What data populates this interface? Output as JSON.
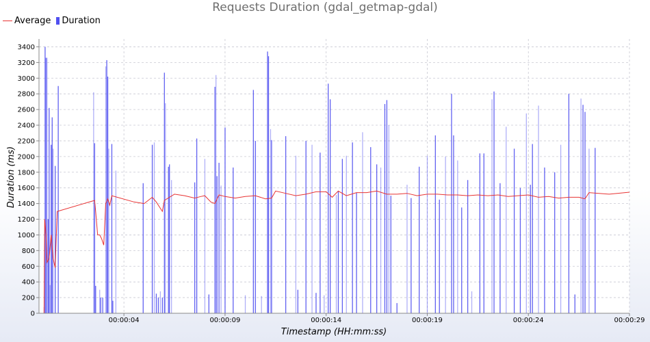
{
  "chart_data": {
    "type": "bar",
    "title": "Requests Duration (gdal_getmap-gdal)",
    "xlabel": "Timestamp (HH:mm:ss)",
    "ylabel": "Duration (ms)",
    "ylim": [
      0,
      3500
    ],
    "yticks": [
      0,
      200,
      400,
      600,
      800,
      1000,
      1200,
      1400,
      1600,
      1800,
      2000,
      2200,
      2400,
      2600,
      2800,
      3000,
      3200,
      3400
    ],
    "xlim_seconds": [
      -0.2,
      29
    ],
    "xticks": [
      {
        "label": "00:00:04",
        "t": 4
      },
      {
        "label": "00:00:09",
        "t": 9
      },
      {
        "label": "00:00:14",
        "t": 14
      },
      {
        "label": "00:00:19",
        "t": 19
      },
      {
        "label": "00:00:24",
        "t": 24
      },
      {
        "label": "00:00:29",
        "t": 29
      }
    ],
    "grid": true,
    "legend_position": "top-left",
    "colors": {
      "average": "#e83232",
      "duration": "#5050f0",
      "grid": "#c8c8d2"
    },
    "series": [
      {
        "name": "Duration",
        "kind": "bar",
        "points": [
          [
            0.05,
            80
          ],
          [
            0.1,
            3400
          ],
          [
            0.15,
            3260
          ],
          [
            0.2,
            3260
          ],
          [
            0.25,
            1200
          ],
          [
            0.3,
            2620
          ],
          [
            0.35,
            360
          ],
          [
            0.4,
            2150
          ],
          [
            0.45,
            2500
          ],
          [
            0.5,
            2100
          ],
          [
            0.6,
            1880
          ],
          [
            0.75,
            2900
          ],
          [
            2.5,
            2820
          ],
          [
            2.55,
            2170
          ],
          [
            2.6,
            350
          ],
          [
            2.8,
            300
          ],
          [
            2.85,
            200
          ],
          [
            2.95,
            200
          ],
          [
            3.1,
            3150
          ],
          [
            3.15,
            3230
          ],
          [
            3.2,
            3020
          ],
          [
            3.25,
            2100
          ],
          [
            3.4,
            2160
          ],
          [
            3.45,
            160
          ],
          [
            3.6,
            1820
          ],
          [
            4.95,
            1660
          ],
          [
            5.4,
            2150
          ],
          [
            5.5,
            2180
          ],
          [
            5.6,
            250
          ],
          [
            5.7,
            200
          ],
          [
            5.8,
            280
          ],
          [
            5.9,
            200
          ],
          [
            6.0,
            3070
          ],
          [
            6.05,
            2680
          ],
          [
            6.2,
            1870
          ],
          [
            6.25,
            1900
          ],
          [
            6.35,
            1700
          ],
          [
            7.5,
            1670
          ],
          [
            7.6,
            2230
          ],
          [
            8.0,
            1970
          ],
          [
            8.2,
            240
          ],
          [
            8.5,
            2890
          ],
          [
            8.55,
            3040
          ],
          [
            8.6,
            1750
          ],
          [
            8.7,
            1920
          ],
          [
            8.8,
            1630
          ],
          [
            9.0,
            2370
          ],
          [
            9.4,
            1860
          ],
          [
            10.0,
            230
          ],
          [
            10.4,
            2850
          ],
          [
            10.5,
            2200
          ],
          [
            10.8,
            220
          ],
          [
            11.1,
            3340
          ],
          [
            11.15,
            3280
          ],
          [
            11.25,
            2350
          ],
          [
            11.3,
            2210
          ],
          [
            12.0,
            2260
          ],
          [
            12.5,
            2010
          ],
          [
            12.6,
            300
          ],
          [
            13.0,
            2200
          ],
          [
            13.3,
            2150
          ],
          [
            13.5,
            260
          ],
          [
            13.7,
            2050
          ],
          [
            13.9,
            230
          ],
          [
            14.1,
            2930
          ],
          [
            14.2,
            2730
          ],
          [
            14.5,
            1510
          ],
          [
            14.6,
            1560
          ],
          [
            14.8,
            1970
          ],
          [
            15.0,
            2010
          ],
          [
            15.3,
            2180
          ],
          [
            15.5,
            1540
          ],
          [
            15.8,
            2310
          ],
          [
            16.2,
            2120
          ],
          [
            16.5,
            1900
          ],
          [
            16.7,
            1860
          ],
          [
            16.9,
            2670
          ],
          [
            17.0,
            2720
          ],
          [
            17.1,
            2400
          ],
          [
            17.2,
            1500
          ],
          [
            17.5,
            130
          ],
          [
            18.0,
            1640
          ],
          [
            18.2,
            1470
          ],
          [
            18.6,
            1870
          ],
          [
            19.0,
            2010
          ],
          [
            19.4,
            2270
          ],
          [
            19.6,
            1450
          ],
          [
            19.9,
            2000
          ],
          [
            20.2,
            2800
          ],
          [
            20.3,
            2270
          ],
          [
            20.5,
            1950
          ],
          [
            20.7,
            1350
          ],
          [
            21.0,
            1700
          ],
          [
            21.2,
            280
          ],
          [
            21.6,
            2040
          ],
          [
            21.8,
            2040
          ],
          [
            22.2,
            2730
          ],
          [
            22.3,
            2830
          ],
          [
            22.6,
            1660
          ],
          [
            22.9,
            2380
          ],
          [
            23.3,
            2100
          ],
          [
            23.6,
            1600
          ],
          [
            23.9,
            2550
          ],
          [
            24.1,
            1640
          ],
          [
            24.2,
            2160
          ],
          [
            24.5,
            2650
          ],
          [
            24.8,
            1860
          ],
          [
            25.3,
            1800
          ],
          [
            25.6,
            2150
          ],
          [
            26.0,
            2800
          ],
          [
            26.3,
            240
          ],
          [
            26.6,
            2740
          ],
          [
            26.7,
            2660
          ],
          [
            26.8,
            2570
          ],
          [
            27.0,
            2100
          ],
          [
            27.3,
            2110
          ]
        ]
      },
      {
        "name": "Average",
        "kind": "line",
        "points": [
          [
            0.05,
            0
          ],
          [
            0.08,
            1200
          ],
          [
            0.15,
            1000
          ],
          [
            0.2,
            650
          ],
          [
            0.3,
            700
          ],
          [
            0.4,
            1000
          ],
          [
            0.5,
            700
          ],
          [
            0.6,
            580
          ],
          [
            0.7,
            1300
          ],
          [
            2.55,
            1440
          ],
          [
            2.6,
            1300
          ],
          [
            2.7,
            1000
          ],
          [
            2.8,
            1000
          ],
          [
            2.9,
            950
          ],
          [
            3.0,
            870
          ],
          [
            3.1,
            1400
          ],
          [
            3.2,
            1460
          ],
          [
            3.3,
            1380
          ],
          [
            3.4,
            1500
          ],
          [
            4.5,
            1420
          ],
          [
            5.0,
            1400
          ],
          [
            5.4,
            1480
          ],
          [
            5.6,
            1420
          ],
          [
            5.9,
            1300
          ],
          [
            6.0,
            1440
          ],
          [
            6.5,
            1520
          ],
          [
            7.0,
            1500
          ],
          [
            7.5,
            1470
          ],
          [
            7.8,
            1490
          ],
          [
            8.0,
            1500
          ],
          [
            8.3,
            1420
          ],
          [
            8.5,
            1400
          ],
          [
            8.7,
            1510
          ],
          [
            9.0,
            1490
          ],
          [
            9.5,
            1470
          ],
          [
            10.0,
            1490
          ],
          [
            10.5,
            1500
          ],
          [
            11.0,
            1460
          ],
          [
            11.3,
            1470
          ],
          [
            11.5,
            1560
          ],
          [
            12.0,
            1530
          ],
          [
            12.5,
            1500
          ],
          [
            13.0,
            1520
          ],
          [
            13.5,
            1550
          ],
          [
            14.0,
            1550
          ],
          [
            14.3,
            1480
          ],
          [
            14.6,
            1560
          ],
          [
            15.0,
            1500
          ],
          [
            15.5,
            1540
          ],
          [
            16.0,
            1540
          ],
          [
            16.5,
            1560
          ],
          [
            17.0,
            1520
          ],
          [
            17.5,
            1520
          ],
          [
            18.0,
            1530
          ],
          [
            18.5,
            1500
          ],
          [
            19.0,
            1520
          ],
          [
            19.5,
            1520
          ],
          [
            20.0,
            1510
          ],
          [
            20.5,
            1510
          ],
          [
            21.0,
            1500
          ],
          [
            21.5,
            1510
          ],
          [
            22.0,
            1500
          ],
          [
            22.5,
            1510
          ],
          [
            23.0,
            1490
          ],
          [
            23.5,
            1500
          ],
          [
            24.0,
            1510
          ],
          [
            24.5,
            1480
          ],
          [
            25.0,
            1490
          ],
          [
            25.5,
            1470
          ],
          [
            26.0,
            1480
          ],
          [
            26.5,
            1480
          ],
          [
            26.8,
            1460
          ],
          [
            27.0,
            1540
          ],
          [
            28.0,
            1520
          ],
          [
            29.0,
            1545
          ]
        ]
      }
    ]
  }
}
